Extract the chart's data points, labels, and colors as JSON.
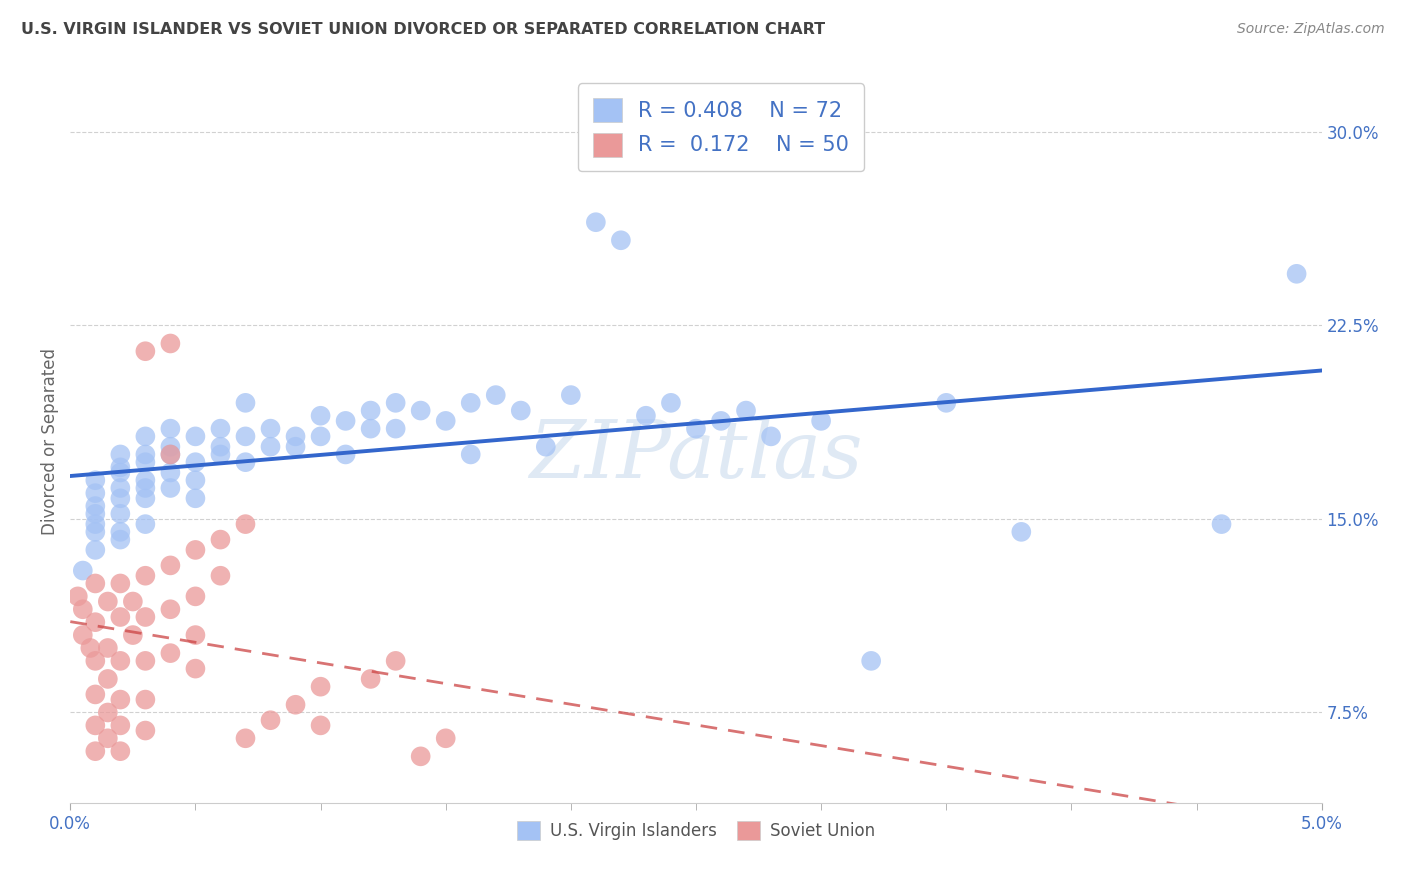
{
  "title": "U.S. VIRGIN ISLANDER VS SOVIET UNION DIVORCED OR SEPARATED CORRELATION CHART",
  "source": "Source: ZipAtlas.com",
  "ylabel": "Divorced or Separated",
  "legend1_r": "0.408",
  "legend1_n": "72",
  "legend2_r": "0.172",
  "legend2_n": "50",
  "legend1_label": "U.S. Virgin Islanders",
  "legend2_label": "Soviet Union",
  "blue_color": "#a4c2f4",
  "pink_color": "#ea9999",
  "line_blue": "#3366cc",
  "line_pink": "#cc4444",
  "watermark": "ZIPatlas",
  "title_color": "#434343",
  "source_color": "#888888",
  "tick_color": "#4472c4",
  "ylabel_color": "#666666",
  "xlim": [
    0,
    0.05
  ],
  "ylim": [
    0.04,
    0.32
  ],
  "y_tick_vals": [
    0.075,
    0.15,
    0.225,
    0.3
  ],
  "y_tick_labels": [
    "7.5%",
    "15.0%",
    "22.5%",
    "30.0%"
  ],
  "x_tick_vals": [
    0.0,
    0.05
  ],
  "x_tick_labels": [
    "0.0%",
    "5.0%"
  ],
  "blue_scatter": [
    [
      0.0005,
      0.13
    ],
    [
      0.001,
      0.145
    ],
    [
      0.001,
      0.138
    ],
    [
      0.001,
      0.155
    ],
    [
      0.001,
      0.165
    ],
    [
      0.001,
      0.148
    ],
    [
      0.001,
      0.16
    ],
    [
      0.001,
      0.152
    ],
    [
      0.002,
      0.142
    ],
    [
      0.002,
      0.158
    ],
    [
      0.002,
      0.168
    ],
    [
      0.002,
      0.175
    ],
    [
      0.002,
      0.152
    ],
    [
      0.002,
      0.162
    ],
    [
      0.002,
      0.145
    ],
    [
      0.002,
      0.17
    ],
    [
      0.003,
      0.148
    ],
    [
      0.003,
      0.162
    ],
    [
      0.003,
      0.172
    ],
    [
      0.003,
      0.158
    ],
    [
      0.003,
      0.175
    ],
    [
      0.003,
      0.165
    ],
    [
      0.003,
      0.182
    ],
    [
      0.004,
      0.168
    ],
    [
      0.004,
      0.178
    ],
    [
      0.004,
      0.162
    ],
    [
      0.004,
      0.175
    ],
    [
      0.004,
      0.185
    ],
    [
      0.005,
      0.172
    ],
    [
      0.005,
      0.182
    ],
    [
      0.005,
      0.165
    ],
    [
      0.005,
      0.158
    ],
    [
      0.006,
      0.175
    ],
    [
      0.006,
      0.185
    ],
    [
      0.006,
      0.178
    ],
    [
      0.007,
      0.172
    ],
    [
      0.007,
      0.182
    ],
    [
      0.007,
      0.195
    ],
    [
      0.008,
      0.178
    ],
    [
      0.008,
      0.185
    ],
    [
      0.009,
      0.182
    ],
    [
      0.009,
      0.178
    ],
    [
      0.01,
      0.19
    ],
    [
      0.01,
      0.182
    ],
    [
      0.011,
      0.188
    ],
    [
      0.011,
      0.175
    ],
    [
      0.012,
      0.192
    ],
    [
      0.012,
      0.185
    ],
    [
      0.013,
      0.195
    ],
    [
      0.013,
      0.185
    ],
    [
      0.014,
      0.192
    ],
    [
      0.015,
      0.188
    ],
    [
      0.016,
      0.175
    ],
    [
      0.016,
      0.195
    ],
    [
      0.017,
      0.198
    ],
    [
      0.018,
      0.192
    ],
    [
      0.019,
      0.178
    ],
    [
      0.02,
      0.198
    ],
    [
      0.021,
      0.265
    ],
    [
      0.022,
      0.258
    ],
    [
      0.023,
      0.19
    ],
    [
      0.024,
      0.195
    ],
    [
      0.025,
      0.185
    ],
    [
      0.026,
      0.188
    ],
    [
      0.027,
      0.192
    ],
    [
      0.028,
      0.182
    ],
    [
      0.03,
      0.188
    ],
    [
      0.032,
      0.095
    ],
    [
      0.035,
      0.195
    ],
    [
      0.038,
      0.145
    ],
    [
      0.046,
      0.148
    ],
    [
      0.049,
      0.245
    ]
  ],
  "pink_scatter": [
    [
      0.0003,
      0.12
    ],
    [
      0.0005,
      0.105
    ],
    [
      0.0005,
      0.115
    ],
    [
      0.0008,
      0.1
    ],
    [
      0.001,
      0.125
    ],
    [
      0.001,
      0.11
    ],
    [
      0.001,
      0.095
    ],
    [
      0.001,
      0.082
    ],
    [
      0.001,
      0.07
    ],
    [
      0.001,
      0.06
    ],
    [
      0.0015,
      0.118
    ],
    [
      0.0015,
      0.1
    ],
    [
      0.0015,
      0.088
    ],
    [
      0.0015,
      0.075
    ],
    [
      0.0015,
      0.065
    ],
    [
      0.002,
      0.125
    ],
    [
      0.002,
      0.112
    ],
    [
      0.002,
      0.095
    ],
    [
      0.002,
      0.08
    ],
    [
      0.002,
      0.07
    ],
    [
      0.002,
      0.06
    ],
    [
      0.0025,
      0.118
    ],
    [
      0.0025,
      0.105
    ],
    [
      0.003,
      0.215
    ],
    [
      0.003,
      0.128
    ],
    [
      0.003,
      0.112
    ],
    [
      0.003,
      0.095
    ],
    [
      0.003,
      0.08
    ],
    [
      0.003,
      0.068
    ],
    [
      0.004,
      0.218
    ],
    [
      0.004,
      0.132
    ],
    [
      0.004,
      0.115
    ],
    [
      0.004,
      0.098
    ],
    [
      0.004,
      0.175
    ],
    [
      0.005,
      0.138
    ],
    [
      0.005,
      0.12
    ],
    [
      0.005,
      0.105
    ],
    [
      0.005,
      0.092
    ],
    [
      0.006,
      0.142
    ],
    [
      0.006,
      0.128
    ],
    [
      0.007,
      0.148
    ],
    [
      0.007,
      0.065
    ],
    [
      0.008,
      0.072
    ],
    [
      0.009,
      0.078
    ],
    [
      0.01,
      0.085
    ],
    [
      0.01,
      0.07
    ],
    [
      0.012,
      0.088
    ],
    [
      0.013,
      0.095
    ],
    [
      0.014,
      0.058
    ],
    [
      0.015,
      0.065
    ]
  ]
}
